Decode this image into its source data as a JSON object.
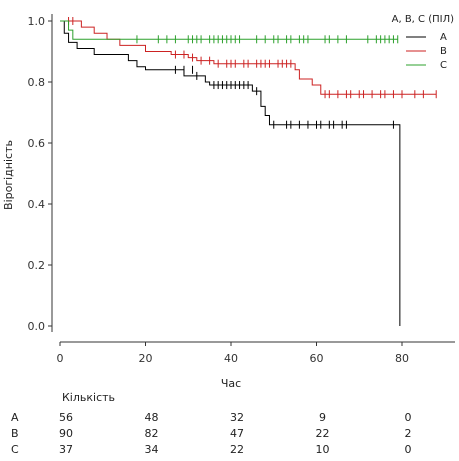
{
  "chart_data": {
    "type": "line",
    "xlabel": "Час",
    "ylabel": "Вірогідність",
    "xlim": [
      0,
      92
    ],
    "ylim": [
      0,
      1.02
    ],
    "x_ticks": [
      "0",
      "20",
      "40",
      "60",
      "80"
    ],
    "y_ticks": [
      "0.0",
      "0.2",
      "0.4",
      "0.6",
      "0.8",
      "1.0"
    ],
    "grid": false,
    "legend": {
      "title": "A, B, C (ПІЛ)",
      "placement": "top-right"
    },
    "series": [
      {
        "name": "A",
        "color": "#000000",
        "steps": [
          [
            0,
            1.0
          ],
          [
            1,
            0.96
          ],
          [
            2,
            0.93
          ],
          [
            4,
            0.91
          ],
          [
            8,
            0.89
          ],
          [
            16,
            0.87
          ],
          [
            18,
            0.85
          ],
          [
            20,
            0.84
          ],
          [
            29,
            0.82
          ],
          [
            34,
            0.8
          ],
          [
            35,
            0.79
          ],
          [
            45,
            0.77
          ],
          [
            47,
            0.72
          ],
          [
            48,
            0.69
          ],
          [
            49,
            0.66
          ],
          [
            79,
            0.66
          ],
          [
            79.5,
            0.0
          ]
        ],
        "censored": [
          [
            27,
            0.84
          ],
          [
            29,
            0.84
          ],
          [
            31,
            0.84
          ],
          [
            32,
            0.82
          ],
          [
            36,
            0.79
          ],
          [
            37,
            0.79
          ],
          [
            38,
            0.79
          ],
          [
            39,
            0.79
          ],
          [
            40,
            0.79
          ],
          [
            41,
            0.79
          ],
          [
            42,
            0.79
          ],
          [
            43,
            0.79
          ],
          [
            44,
            0.79
          ],
          [
            46,
            0.77
          ],
          [
            50,
            0.66
          ],
          [
            53,
            0.66
          ],
          [
            54,
            0.66
          ],
          [
            56,
            0.66
          ],
          [
            58,
            0.66
          ],
          [
            60,
            0.66
          ],
          [
            61,
            0.66
          ],
          [
            63,
            0.66
          ],
          [
            64,
            0.66
          ],
          [
            66,
            0.66
          ],
          [
            67,
            0.66
          ],
          [
            78,
            0.66
          ]
        ]
      },
      {
        "name": "B",
        "color": "#cc2222",
        "steps": [
          [
            0,
            1.0
          ],
          [
            5,
            0.98
          ],
          [
            8,
            0.96
          ],
          [
            11,
            0.94
          ],
          [
            14,
            0.92
          ],
          [
            20,
            0.9
          ],
          [
            26,
            0.89
          ],
          [
            30,
            0.88
          ],
          [
            32,
            0.87
          ],
          [
            36,
            0.86
          ],
          [
            55,
            0.84
          ],
          [
            56,
            0.81
          ],
          [
            59,
            0.79
          ],
          [
            61,
            0.76
          ],
          [
            88,
            0.76
          ]
        ],
        "censored": [
          [
            2,
            1.0
          ],
          [
            3,
            1.0
          ],
          [
            27,
            0.89
          ],
          [
            29,
            0.89
          ],
          [
            31,
            0.88
          ],
          [
            33,
            0.87
          ],
          [
            35,
            0.87
          ],
          [
            37,
            0.86
          ],
          [
            39,
            0.86
          ],
          [
            40,
            0.86
          ],
          [
            41,
            0.86
          ],
          [
            43,
            0.86
          ],
          [
            44,
            0.86
          ],
          [
            46,
            0.86
          ],
          [
            47,
            0.86
          ],
          [
            48,
            0.86
          ],
          [
            49,
            0.86
          ],
          [
            51,
            0.86
          ],
          [
            52,
            0.86
          ],
          [
            53,
            0.86
          ],
          [
            54,
            0.86
          ],
          [
            62,
            0.76
          ],
          [
            63,
            0.76
          ],
          [
            65,
            0.76
          ],
          [
            67,
            0.76
          ],
          [
            68,
            0.76
          ],
          [
            70,
            0.76
          ],
          [
            71,
            0.76
          ],
          [
            73,
            0.76
          ],
          [
            75,
            0.76
          ],
          [
            76,
            0.76
          ],
          [
            78,
            0.76
          ],
          [
            80,
            0.76
          ],
          [
            83,
            0.76
          ],
          [
            85,
            0.76
          ],
          [
            88,
            0.76
          ]
        ]
      },
      {
        "name": "C",
        "color": "#2ca02c",
        "steps": [
          [
            0,
            1.0
          ],
          [
            2,
            0.97
          ],
          [
            3,
            0.94
          ],
          [
            79,
            0.94
          ]
        ],
        "censored": [
          [
            18,
            0.94
          ],
          [
            23,
            0.94
          ],
          [
            25,
            0.94
          ],
          [
            27,
            0.94
          ],
          [
            30,
            0.94
          ],
          [
            31,
            0.94
          ],
          [
            32,
            0.94
          ],
          [
            33,
            0.94
          ],
          [
            35,
            0.94
          ],
          [
            36,
            0.94
          ],
          [
            37,
            0.94
          ],
          [
            38,
            0.94
          ],
          [
            39,
            0.94
          ],
          [
            40,
            0.94
          ],
          [
            41,
            0.94
          ],
          [
            42,
            0.94
          ],
          [
            46,
            0.94
          ],
          [
            48,
            0.94
          ],
          [
            50,
            0.94
          ],
          [
            51,
            0.94
          ],
          [
            53,
            0.94
          ],
          [
            54,
            0.94
          ],
          [
            56,
            0.94
          ],
          [
            57,
            0.94
          ],
          [
            58,
            0.94
          ],
          [
            62,
            0.94
          ],
          [
            63,
            0.94
          ],
          [
            65,
            0.94
          ],
          [
            67,
            0.94
          ],
          [
            72,
            0.94
          ],
          [
            74,
            0.94
          ],
          [
            75,
            0.94
          ],
          [
            76,
            0.94
          ],
          [
            77,
            0.94
          ],
          [
            78,
            0.94
          ],
          [
            79,
            0.94
          ]
        ]
      }
    ],
    "risk_table": {
      "title": "Кількість",
      "times": [
        0,
        20,
        40,
        60,
        80
      ],
      "rows": [
        {
          "label": "A",
          "counts": [
            "56",
            "48",
            "32",
            "9",
            "0"
          ]
        },
        {
          "label": "B",
          "counts": [
            "90",
            "82",
            "47",
            "22",
            "2"
          ]
        },
        {
          "label": "C",
          "counts": [
            "37",
            "34",
            "22",
            "10",
            "0"
          ]
        }
      ]
    }
  }
}
